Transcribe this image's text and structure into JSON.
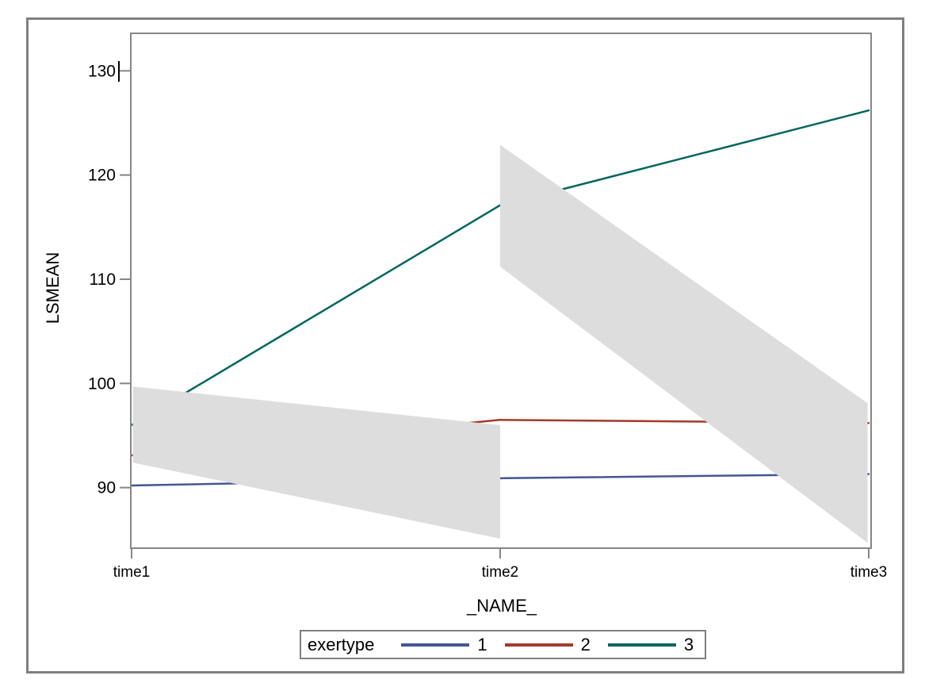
{
  "figure": {
    "background_color": "#ffffff",
    "frame_border_color": "#7f7f7f",
    "plot_border_color": "#868686",
    "tick_color": "#868686",
    "text_color": "#000000"
  },
  "chart_data": {
    "type": "line",
    "title": "",
    "xlabel": "_NAME_",
    "ylabel": "LSMEAN",
    "categories": [
      "time1",
      "time2",
      "time3"
    ],
    "yticks": [
      90,
      100,
      110,
      120,
      130
    ],
    "ylim": [
      84.15,
      133.6
    ],
    "grid": false,
    "legend": {
      "title": "exertype",
      "position": "bottom-center",
      "border_color": "#808080"
    },
    "series": [
      {
        "name": "1",
        "color": "#445694",
        "values": [
          90.2,
          90.9,
          91.3
        ]
      },
      {
        "name": "2",
        "color": "#A23A2E",
        "values": [
          93.1,
          96.5,
          96.2
        ]
      },
      {
        "name": "3",
        "color": "#01665E",
        "values": [
          96.0,
          117.1,
          126.2
        ]
      }
    ],
    "bands": [
      {
        "name": "confidence-band-time1-time2",
        "color": "#DDDDDD",
        "x": [
          "time1",
          "time2"
        ],
        "upper": [
          99.7,
          96.0
        ],
        "lower": [
          92.4,
          85.1
        ]
      },
      {
        "name": "confidence-band-time2-time3",
        "color": "#DDDDDD",
        "x": [
          "time2",
          "time3"
        ],
        "upper": [
          122.9,
          98.1
        ],
        "lower": [
          111.2,
          84.7
        ]
      }
    ]
  },
  "artifacts": {
    "text_cursor": "caret shown after y-tick label 130"
  }
}
